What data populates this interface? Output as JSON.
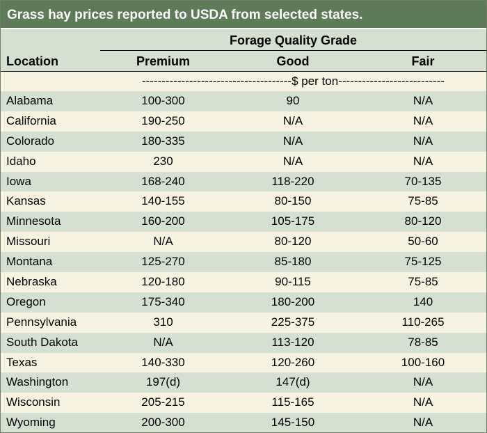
{
  "title": "Grass hay prices reported to USDA from selected states.",
  "header": {
    "group": "Forage Quality Grade",
    "location": "Location",
    "premium": "Premium",
    "good": "Good",
    "fair": "Fair"
  },
  "unit_line": "--------------------------------------$ per ton---------------------------",
  "rows": [
    {
      "location": "Alabama",
      "premium": "100-300",
      "good": "90",
      "fair": "N/A"
    },
    {
      "location": "California",
      "premium": "190-250",
      "good": "N/A",
      "fair": "N/A"
    },
    {
      "location": "Colorado",
      "premium": "180-335",
      "good": "N/A",
      "fair": "N/A"
    },
    {
      "location": "Idaho",
      "premium": "230",
      "good": "N/A",
      "fair": "N/A"
    },
    {
      "location": "Iowa",
      "premium": "168-240",
      "good": "118-220",
      "fair": "70-135"
    },
    {
      "location": "Kansas",
      "premium": "140-155",
      "good": "80-150",
      "fair": "75-85"
    },
    {
      "location": "Minnesota",
      "premium": "160-200",
      "good": "105-175",
      "fair": "80-120"
    },
    {
      "location": "Missouri",
      "premium": "N/A",
      "good": "80-120",
      "fair": "50-60"
    },
    {
      "location": "Montana",
      "premium": "125-270",
      "good": "85-180",
      "fair": "75-125"
    },
    {
      "location": "Nebraska",
      "premium": "120-180",
      "good": "90-115",
      "fair": "75-85"
    },
    {
      "location": "Oregon",
      "premium": "175-340",
      "good": "180-200",
      "fair": "140"
    },
    {
      "location": "Pennsylvania",
      "premium": "310",
      "good": "225-375",
      "fair": "110-265"
    },
    {
      "location": "South Dakota",
      "premium": "N/A",
      "good": "113-120",
      "fair": "78-85"
    },
    {
      "location": "Texas",
      "premium": "140-330",
      "good": "120-260",
      "fair": "100-160"
    },
    {
      "location": "Washington",
      "premium": "197(d)",
      "good": "147(d)",
      "fair": "N/A"
    },
    {
      "location": "Wisconsin",
      "premium": "205-215",
      "good": "115-165",
      "fair": "N/A"
    },
    {
      "location": "Wyoming",
      "premium": "200-300",
      "good": "145-150",
      "fair": "N/A"
    }
  ]
}
